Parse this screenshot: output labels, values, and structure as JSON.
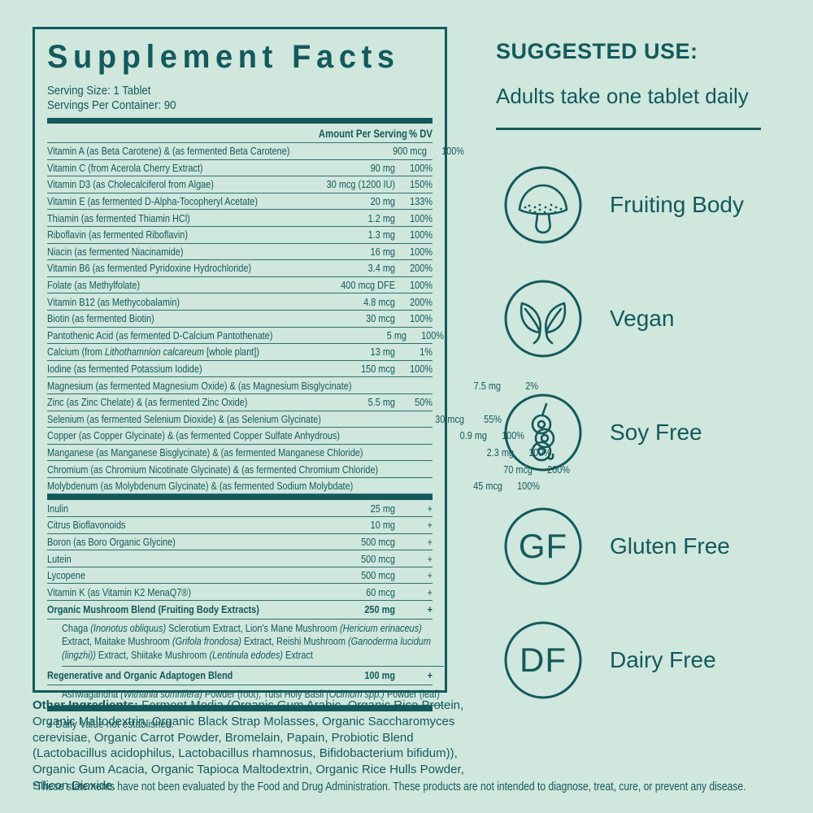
{
  "colors": {
    "background": "#cfe7dc",
    "teal": "#14595c"
  },
  "panel": {
    "title": "Supplement Facts",
    "serving_size": "Serving Size: 1 Tablet",
    "servings_per_container": "Servings Per Container: 90",
    "col_amount": "Amount Per Serving",
    "col_dv": "% DV",
    "sections": [
      {
        "rows": [
          {
            "name": [
              "Vitamin A (as Beta Carotene) & (as fermented Beta Carotene)"
            ],
            "amount": "900 mcg",
            "dv": "100%"
          },
          {
            "name": [
              "Vitamin C (from Acerola Cherry Extract)"
            ],
            "amount": "90 mg",
            "dv": "100%"
          },
          {
            "name": [
              "Vitamin D3 (as Cholecalciferol from Algae)"
            ],
            "amount": "30 mcg (1200 IU)",
            "dv": "150%"
          },
          {
            "name": [
              "Vitamin E (as fermented D-Alpha-Tocopheryl Acetate)"
            ],
            "amount": "20 mg",
            "dv": "133%"
          },
          {
            "name": [
              "Thiamin (as fermented Thiamin HCl)"
            ],
            "amount": "1.2 mg",
            "dv": "100%"
          },
          {
            "name": [
              "Riboflavin (as fermented Riboflavin)"
            ],
            "amount": "1.3 mg",
            "dv": "100%"
          },
          {
            "name": [
              "Niacin (as fermented Niacinamide)"
            ],
            "amount": "16 mg",
            "dv": "100%"
          },
          {
            "name": [
              "Vitamin B6 (as fermented Pyridoxine Hydrochloride)"
            ],
            "amount": "3.4 mg",
            "dv": "200%"
          },
          {
            "name": [
              "Folate (as Methylfolate)"
            ],
            "amount": "400 mcg DFE",
            "dv": "100%"
          },
          {
            "name": [
              "Vitamin B12 (as Methycobalamin)"
            ],
            "amount": "4.8 mcg",
            "dv": "200%"
          },
          {
            "name": [
              "Biotin (as fermented Biotin)"
            ],
            "amount": "30 mcg",
            "dv": "100%"
          },
          {
            "name": [
              "Pantothenic Acid (as fermented D-Calcium Pantothenate)"
            ],
            "amount": "5 mg",
            "dv": "100%"
          },
          {
            "name": [
              "Calcium (from ",
              {
                "i": "Lithothamnion calcareum"
              },
              " [whole plant])"
            ],
            "amount": "13 mg",
            "dv": "1%"
          },
          {
            "name": [
              "Iodine (as fermented Potassium Iodide)"
            ],
            "amount": "150 mcg",
            "dv": "100%"
          },
          {
            "name": [
              "Magnesium (as fermented Magnesium Oxide) & (as Magnesium Bisglycinate)"
            ],
            "amount": "7.5 mg",
            "dv": "2%"
          },
          {
            "name": [
              "Zinc (as Zinc Chelate) & (as fermented Zinc Oxide)"
            ],
            "amount": "5.5 mg",
            "dv": "50%"
          },
          {
            "name": [
              "Selenium (as fermented Selenium Dioxide) & (as Selenium Glycinate)"
            ],
            "amount": "30 mcg",
            "dv": "55%"
          },
          {
            "name": [
              "Copper (as Copper Glycinate) & (as fermented Copper Sulfate Anhydrous)"
            ],
            "amount": "0.9 mg",
            "dv": "100%"
          },
          {
            "name": [
              "Manganese (as Manganese Bisglycinate) & (as fermented Manganese Chloride)"
            ],
            "amount": "2.3 mg",
            "dv": "100%"
          },
          {
            "name": [
              "Chromium (as Chromium Nicotinate Glycinate) & (as fermented Chromium Chloride)"
            ],
            "amount": "70 mcg",
            "dv": "200%"
          },
          {
            "name": [
              "Molybdenum (as Molybdenum Glycinate) & (as fermented Sodium Molybdate)"
            ],
            "amount": "45 mcg",
            "dv": "100%"
          }
        ]
      },
      {
        "rows": [
          {
            "name": [
              "Inulin"
            ],
            "amount": "25 mg",
            "dv": "+"
          },
          {
            "name": [
              "Citrus Bioflavonoids"
            ],
            "amount": "10 mg",
            "dv": "+"
          },
          {
            "name": [
              "Boron (as Boro Organic Glycine)"
            ],
            "amount": "500 mcg",
            "dv": "+"
          },
          {
            "name": [
              "Lutein"
            ],
            "amount": "500 mcg",
            "dv": "+"
          },
          {
            "name": [
              "Lycopene"
            ],
            "amount": "500 mcg",
            "dv": "+"
          },
          {
            "name": [
              "Vitamin K (as Vitamin K2 MenaQ7®)"
            ],
            "amount": "60 mcg",
            "dv": "+"
          },
          {
            "name": [
              "Organic Mushroom Blend (Fruiting Body Extracts)"
            ],
            "amount": "250 mg",
            "dv": "+",
            "bold": true,
            "sub": [
              "Chaga ",
              {
                "i": "(Inonotus obliquus)"
              },
              " Sclerotium Extract, Lion's Mane Mushroom ",
              {
                "i": "(Hericium erinaceus)"
              },
              " Extract, Maitake Mushroom ",
              {
                "i": "(Grifola frondosa)"
              },
              " Extract, Reishi Mushroom ",
              {
                "i": "(Ganoderma lucidum (lingzhi))"
              },
              " Extract, Shiitake Mushroom ",
              {
                "i": "(Lentinula edodes)"
              },
              " Extract"
            ]
          },
          {
            "name": [
              "Regenerative and Organic Adaptogen Blend"
            ],
            "amount": "100 mg",
            "dv": "+",
            "bold": true,
            "sub": [
              "Ashwagandha ",
              {
                "i": "(Withania somnifera)"
              },
              " Powder (root), Tulsi Holy Basil ",
              {
                "i": "(Ocimum spp.)"
              },
              " Powder (leaf)"
            ]
          }
        ]
      }
    ],
    "footnote": "+ Daily Value not established."
  },
  "other_ingredients": {
    "label": "Other Ingredients:",
    "text": " Ferment Media (Organic Gum Arabic, Organic Rice Protein, Organic Maltodextrin, Organic Black Strap Molasses, Organic Saccharomyces cerevisiae, Organic Carrot Powder, Bromelain, Papain, Probiotic Blend (Lactobacillus acidophilus, Lactobacillus rhamnosus, Bifidobacterium bifidum)), Organic Gum Acacia, Organic Tapioca Maltodextrin, Organic Rice Hulls Powder, Silicon Dioxide."
  },
  "disclaimer": "*These statements have not been evaluated by the Food and Drug Administration. These products are not intended to diagnose, treat, cure, or prevent any disease.",
  "right": {
    "suggested_use_title": "SUGGESTED USE:",
    "suggested_use_text": "Adults take one tablet daily",
    "badges": [
      {
        "icon": "mushroom-icon",
        "label": "Fruiting Body"
      },
      {
        "icon": "leaves-icon",
        "label": "Vegan"
      },
      {
        "icon": "soybean-icon",
        "label": "Soy Free"
      },
      {
        "icon": "gf-monogram-icon",
        "label": "Gluten Free",
        "monogram": "GF"
      },
      {
        "icon": "df-monogram-icon",
        "label": "Dairy Free",
        "monogram": "DF"
      }
    ]
  }
}
